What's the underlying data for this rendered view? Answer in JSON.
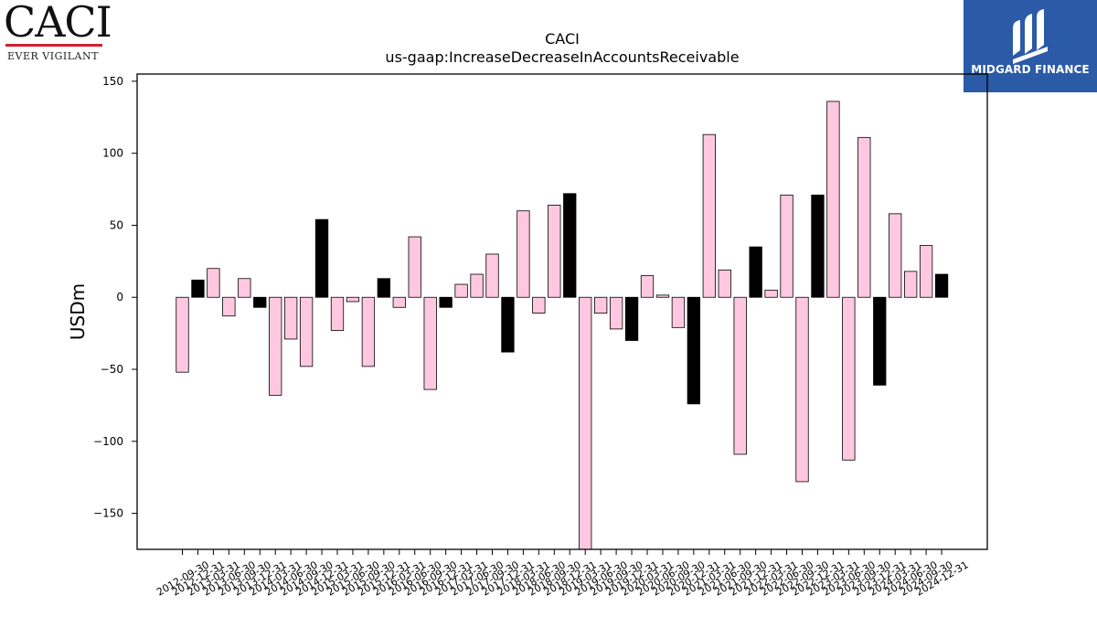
{
  "logo": {
    "wordmark": "CACI",
    "tagline": "EVER VIGILANT"
  },
  "brand": {
    "name": "MIDGARD FINANCE",
    "color": "#2b5aa6"
  },
  "chart_data": {
    "type": "bar",
    "title": "CACI",
    "subtitle": "us-gaap:IncreaseDecreaseInAccountsReceivable",
    "ylabel": "USDm",
    "xlabel": "",
    "ylim": [
      -175,
      155
    ],
    "yticks": [
      150,
      100,
      50,
      0,
      -50,
      -100,
      -150
    ],
    "ytick_labels": [
      "150",
      "100",
      "50",
      "0",
      "−50",
      "−100",
      "−150"
    ],
    "grid": false,
    "colors": {
      "quarter": "#ffc8e0",
      "fiscal_year_end": "#000000",
      "edge": "#000000"
    },
    "categories": [
      "2012-09-30",
      "2012-12-31",
      "2013-03-31",
      "2013-06-30",
      "2013-09-30",
      "2013-12-31",
      "2014-03-31",
      "2014-06-30",
      "2014-09-30",
      "2014-12-31",
      "2015-03-31",
      "2015-06-30",
      "2015-09-30",
      "2015-12-31",
      "2016-03-31",
      "2016-06-30",
      "2016-09-30",
      "2016-12-31",
      "2017-03-31",
      "2017-06-30",
      "2017-09-30",
      "2017-12-31",
      "2018-03-31",
      "2018-06-30",
      "2018-09-30",
      "2018-12-31",
      "2019-03-31",
      "2019-06-30",
      "2019-09-30",
      "2019-12-31",
      "2020-03-31",
      "2020-06-30",
      "2020-09-30",
      "2020-12-31",
      "2021-03-31",
      "2021-06-30",
      "2021-09-30",
      "2021-12-31",
      "2022-03-31",
      "2022-06-30",
      "2022-09-30",
      "2022-12-31",
      "2023-03-31",
      "2023-06-30",
      "2023-09-30",
      "2023-12-31",
      "2024-03-31",
      "2024-06-30",
      "2024-09-30",
      "2024-12-31"
    ],
    "values": [
      -52,
      12,
      20,
      -13,
      13,
      -7,
      -68,
      -29,
      -48,
      54,
      -23,
      -3,
      -48,
      13,
      -7,
      42,
      -64,
      -7,
      9,
      16,
      30,
      -38,
      60,
      -11,
      64,
      72,
      -176,
      -11,
      -22,
      -30,
      15,
      1.5,
      -21,
      -74,
      113,
      19,
      -109,
      35,
      5,
      71,
      -128,
      71,
      136,
      -113,
      111,
      -61,
      58,
      18,
      36,
      16
    ],
    "highlight": [
      false,
      true,
      false,
      false,
      false,
      true,
      false,
      false,
      false,
      true,
      false,
      false,
      false,
      true,
      false,
      false,
      false,
      true,
      false,
      false,
      false,
      true,
      false,
      false,
      false,
      true,
      false,
      false,
      false,
      true,
      false,
      false,
      false,
      true,
      false,
      false,
      false,
      true,
      false,
      false,
      false,
      true,
      false,
      false,
      false,
      true,
      false,
      false,
      false,
      true
    ]
  }
}
